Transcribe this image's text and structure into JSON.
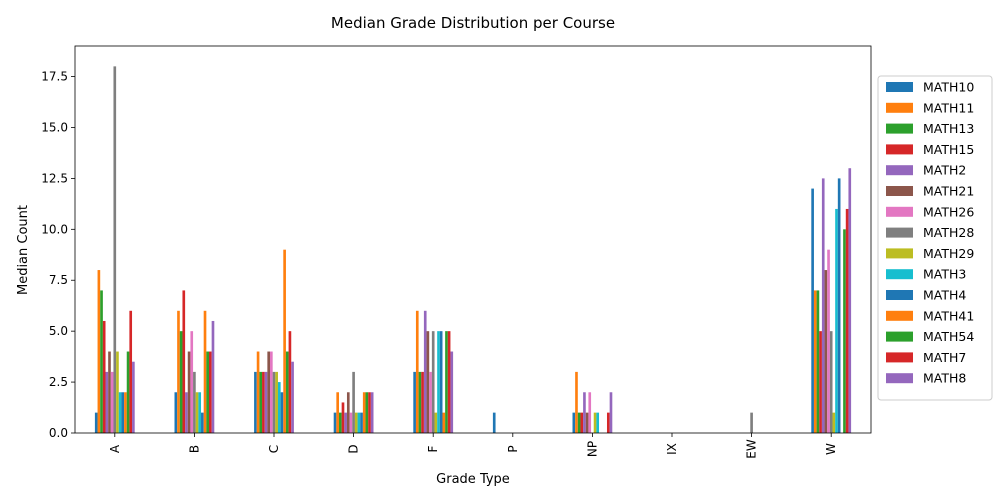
{
  "chart_data": {
    "type": "bar",
    "title": "Median Grade Distribution per Course",
    "xlabel": "Grade Type",
    "ylabel": "Median Count",
    "ylim": [
      0,
      19
    ],
    "yticks": [
      0.0,
      2.5,
      5.0,
      7.5,
      10.0,
      12.5,
      15.0,
      17.5
    ],
    "ytick_labels": [
      "0.0",
      "2.5",
      "5.0",
      "7.5",
      "10.0",
      "12.5",
      "15.0",
      "17.5"
    ],
    "grid": false,
    "legend_position": "center-right outside",
    "categories": [
      "A",
      "B",
      "C",
      "D",
      "F",
      "P",
      "NP",
      "IX",
      "EW",
      "W"
    ],
    "series": [
      {
        "name": "MATH10",
        "color": "#1f77b4",
        "values": [
          1,
          2,
          3,
          1,
          3,
          1,
          1,
          0,
          0,
          12
        ]
      },
      {
        "name": "MATH11",
        "color": "#ff7f0e",
        "values": [
          8,
          6,
          4,
          2,
          6,
          0,
          3,
          0,
          0,
          7
        ]
      },
      {
        "name": "MATH13",
        "color": "#2ca02c",
        "values": [
          7,
          5,
          3,
          1,
          3,
          0,
          1,
          0,
          0,
          7
        ]
      },
      {
        "name": "MATH15",
        "color": "#d62728",
        "values": [
          5.5,
          7,
          3,
          1.5,
          3,
          0,
          1,
          0,
          0,
          5
        ]
      },
      {
        "name": "MATH2",
        "color": "#9467bd",
        "values": [
          3,
          2,
          3,
          1,
          6,
          0,
          2,
          0,
          0,
          12.5
        ]
      },
      {
        "name": "MATH21",
        "color": "#8c564b",
        "values": [
          4,
          4,
          4,
          2,
          5,
          0,
          1,
          0,
          0,
          8
        ]
      },
      {
        "name": "MATH26",
        "color": "#e377c2",
        "values": [
          3,
          5,
          4,
          1,
          3,
          0,
          2,
          0,
          0,
          9
        ]
      },
      {
        "name": "MATH28",
        "color": "#7f7f7f",
        "values": [
          18,
          3,
          3,
          3,
          5,
          0,
          0,
          0,
          1,
          5
        ]
      },
      {
        "name": "MATH29",
        "color": "#bcbd22",
        "values": [
          4,
          2,
          3,
          1,
          1,
          0,
          1,
          0,
          0,
          1
        ]
      },
      {
        "name": "MATH3",
        "color": "#17becf",
        "values": [
          2,
          2,
          2.5,
          1,
          5,
          0,
          1,
          0,
          0,
          11
        ]
      },
      {
        "name": "MATH4",
        "color": "#1f77b4",
        "values": [
          2,
          1,
          2,
          1,
          5,
          0,
          0,
          0,
          0,
          12.5
        ]
      },
      {
        "name": "MATH41",
        "color": "#ff7f0e",
        "values": [
          2,
          6,
          9,
          2,
          1,
          0,
          0,
          0,
          0,
          0
        ]
      },
      {
        "name": "MATH54",
        "color": "#2ca02c",
        "values": [
          4,
          4,
          4,
          2,
          5,
          0,
          0,
          0,
          0,
          10
        ]
      },
      {
        "name": "MATH7",
        "color": "#d62728",
        "values": [
          6,
          4,
          5,
          2,
          5,
          0,
          1,
          0,
          0,
          11
        ]
      },
      {
        "name": "MATH8",
        "color": "#9467bd",
        "values": [
          3.5,
          5.5,
          3.5,
          2,
          4,
          0,
          2,
          0,
          0,
          13
        ]
      }
    ]
  }
}
